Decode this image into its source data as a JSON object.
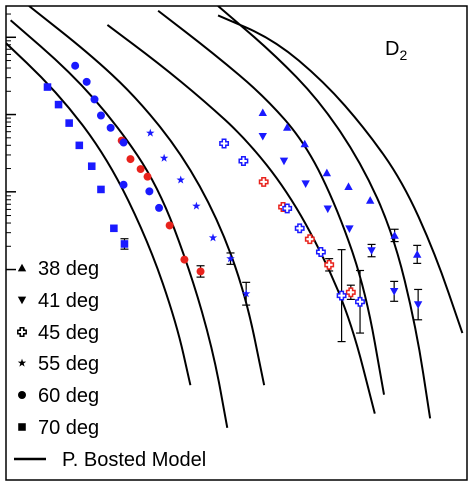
{
  "chart_data": {
    "type": "scatter",
    "title": "",
    "xlabel": "",
    "ylabel": "",
    "xlim": [
      0,
      100
    ],
    "ylim": [
      0,
      100
    ],
    "y_log_scale": true,
    "grid": false,
    "legend_placement": "bottom-left",
    "label": {
      "main": "D",
      "sub": "2"
    },
    "model_label": "P. Bosted Model",
    "colors": {
      "data": "#1a1aff",
      "highlight": "#e8221c",
      "line": "#000000"
    },
    "series": [
      {
        "name": "38 deg",
        "marker": "triangle-up",
        "points": [
          {
            "x": 55.7,
            "y": 77.5,
            "err": 0
          },
          {
            "x": 61.0,
            "y": 74.4,
            "err": 0
          },
          {
            "x": 64.8,
            "y": 70.9,
            "err": 0
          },
          {
            "x": 69.6,
            "y": 64.8,
            "err": 0
          },
          {
            "x": 74.3,
            "y": 61.9,
            "err": 0
          },
          {
            "x": 79.0,
            "y": 59.0,
            "err": 0
          },
          {
            "x": 84.3,
            "y": 51.6,
            "err": 1.3
          },
          {
            "x": 89.2,
            "y": 47.6,
            "err": 1.9
          }
        ]
      },
      {
        "name": "41 deg",
        "marker": "triangle-down",
        "points": [
          {
            "x": 55.7,
            "y": 72.5,
            "err": 0
          },
          {
            "x": 60.3,
            "y": 67.3,
            "err": 0
          },
          {
            "x": 65.0,
            "y": 62.5,
            "err": 0
          },
          {
            "x": 69.8,
            "y": 57.2,
            "err": 0
          },
          {
            "x": 74.5,
            "y": 53.0,
            "err": 0
          },
          {
            "x": 79.3,
            "y": 48.4,
            "err": 1.3
          },
          {
            "x": 84.2,
            "y": 39.8,
            "err": 2.1
          },
          {
            "x": 89.4,
            "y": 37.0,
            "err": 3.2
          }
        ]
      },
      {
        "name": "45 deg",
        "marker": "cross",
        "points": [
          {
            "x": 47.3,
            "y": 71.0,
            "err": 0,
            "hl": false
          },
          {
            "x": 51.5,
            "y": 67.3,
            "err": 0,
            "hl": false
          },
          {
            "x": 55.9,
            "y": 62.9,
            "err": 0,
            "hl": true
          },
          {
            "x": 60.1,
            "y": 57.6,
            "err": 0,
            "hl": true
          },
          {
            "x": 61.0,
            "y": 57.3,
            "err": 0,
            "hl": false
          },
          {
            "x": 63.7,
            "y": 53.1,
            "err": 0,
            "hl": false
          },
          {
            "x": 65.9,
            "y": 50.8,
            "err": 0,
            "hl": true
          },
          {
            "x": 68.3,
            "y": 48.1,
            "err": 0,
            "hl": false
          },
          {
            "x": 70.1,
            "y": 45.4,
            "err": 1.3,
            "hl": true
          },
          {
            "x": 74.8,
            "y": 39.6,
            "err": 1.5,
            "hl": true
          },
          {
            "x": 72.8,
            "y": 38.9,
            "err": 9.7,
            "hl": false
          },
          {
            "x": 76.8,
            "y": 37.6,
            "err": 6.6,
            "hl": false
          }
        ]
      },
      {
        "name": "55 deg",
        "marker": "star",
        "points": [
          {
            "x": 31.3,
            "y": 73.2,
            "err": 0
          },
          {
            "x": 34.3,
            "y": 67.9,
            "err": 0
          },
          {
            "x": 37.9,
            "y": 63.3,
            "err": 0
          },
          {
            "x": 41.3,
            "y": 57.8,
            "err": 0
          },
          {
            "x": 44.9,
            "y": 51.1,
            "err": 0
          },
          {
            "x": 48.7,
            "y": 46.7,
            "err": 1.2
          },
          {
            "x": 52.1,
            "y": 39.3,
            "err": 2.4
          }
        ]
      },
      {
        "name": "60 deg",
        "marker": "circle",
        "points": [
          {
            "x": 15.0,
            "y": 87.4,
            "err": 0,
            "hl": false
          },
          {
            "x": 17.5,
            "y": 84.0,
            "err": 0,
            "hl": false
          },
          {
            "x": 19.2,
            "y": 80.3,
            "err": 0,
            "hl": false
          },
          {
            "x": 20.6,
            "y": 76.9,
            "err": 0,
            "hl": false
          },
          {
            "x": 22.7,
            "y": 74.3,
            "err": 0,
            "hl": false
          },
          {
            "x": 25.1,
            "y": 71.6,
            "err": 0,
            "hl": true
          },
          {
            "x": 25.5,
            "y": 71.2,
            "err": 0,
            "hl": false
          },
          {
            "x": 27.0,
            "y": 67.7,
            "err": 0,
            "hl": true
          },
          {
            "x": 29.2,
            "y": 65.6,
            "err": 0,
            "hl": true
          },
          {
            "x": 30.7,
            "y": 64.0,
            "err": 0,
            "hl": true
          },
          {
            "x": 25.5,
            "y": 62.3,
            "err": 0,
            "hl": false
          },
          {
            "x": 31.1,
            "y": 60.9,
            "err": 0,
            "hl": false
          },
          {
            "x": 33.2,
            "y": 57.4,
            "err": 0,
            "hl": false
          },
          {
            "x": 35.5,
            "y": 53.7,
            "err": 0,
            "hl": true
          },
          {
            "x": 38.7,
            "y": 46.5,
            "err": 0,
            "hl": true
          },
          {
            "x": 42.2,
            "y": 44.0,
            "err": 1.2,
            "hl": true
          }
        ]
      },
      {
        "name": "70 deg",
        "marker": "square",
        "points": [
          {
            "x": 9.0,
            "y": 82.9,
            "err": 0
          },
          {
            "x": 11.4,
            "y": 79.2,
            "err": 0
          },
          {
            "x": 13.7,
            "y": 75.3,
            "err": 0
          },
          {
            "x": 15.9,
            "y": 70.6,
            "err": 0
          },
          {
            "x": 18.6,
            "y": 66.2,
            "err": 0
          },
          {
            "x": 20.6,
            "y": 61.3,
            "err": 0
          },
          {
            "x": 23.4,
            "y": 53.1,
            "err": 0
          },
          {
            "x": 25.7,
            "y": 49.8,
            "err": 1.1
          }
        ]
      }
    ],
    "model_curves": [
      [
        [
          -2,
          94
        ],
        [
          11,
          82
        ],
        [
          22,
          68
        ],
        [
          31,
          50
        ],
        [
          37,
          33
        ],
        [
          40,
          20
        ]
      ],
      [
        [
          1,
          97
        ],
        [
          14,
          86
        ],
        [
          24,
          75
        ],
        [
          33,
          62
        ],
        [
          40,
          44
        ],
        [
          45,
          27
        ],
        [
          48,
          11
        ]
      ],
      [
        [
          5,
          100
        ],
        [
          18,
          90
        ],
        [
          28,
          81
        ],
        [
          38,
          69
        ],
        [
          46,
          55
        ],
        [
          52,
          39
        ],
        [
          56,
          20
        ]
      ],
      [
        [
          22,
          96
        ],
        [
          33,
          88
        ],
        [
          43,
          80
        ],
        [
          52,
          72
        ],
        [
          61,
          61
        ],
        [
          69,
          47
        ],
        [
          75,
          33
        ],
        [
          80,
          14
        ]
      ],
      [
        [
          33,
          99
        ],
        [
          45,
          90
        ],
        [
          56,
          81
        ],
        [
          65,
          71
        ],
        [
          72,
          57
        ],
        [
          78,
          40
        ],
        [
          82,
          18
        ]
      ],
      [
        [
          46,
          100
        ],
        [
          58,
          90
        ],
        [
          68,
          80
        ],
        [
          77,
          67
        ],
        [
          84,
          52
        ],
        [
          89,
          32
        ],
        [
          92,
          13
        ]
      ],
      [
        [
          46,
          98
        ],
        [
          58,
          93
        ],
        [
          69,
          84
        ],
        [
          78,
          74
        ],
        [
          86,
          63
        ],
        [
          93,
          48
        ],
        [
          99,
          31
        ]
      ]
    ]
  }
}
